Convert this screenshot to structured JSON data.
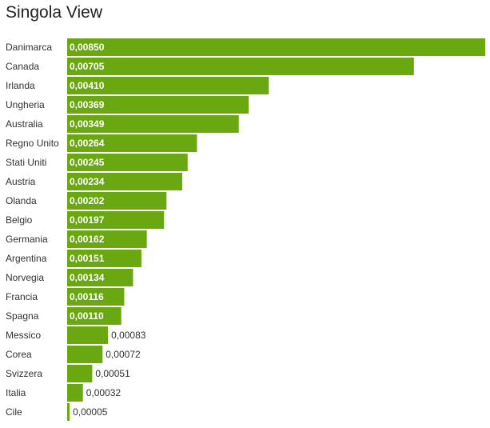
{
  "chart_data": {
    "type": "bar",
    "orientation": "horizontal",
    "title": "Singola View",
    "categories": [
      "Danimarca",
      "Canada",
      "Irlanda",
      "Ungheria",
      "Australia",
      "Regno Unito",
      "Stati Uniti",
      "Austria",
      "Olanda",
      "Belgio",
      "Germania",
      "Argentina",
      "Norvegia",
      "Francia",
      "Spagna",
      "Messico",
      "Corea",
      "Svizzera",
      "Italia",
      "Cile"
    ],
    "values": [
      0.0085,
      0.00705,
      0.0041,
      0.00369,
      0.00349,
      0.00264,
      0.00245,
      0.00234,
      0.00202,
      0.00197,
      0.00162,
      0.00151,
      0.00134,
      0.00116,
      0.0011,
      0.00083,
      0.00072,
      0.00051,
      0.00032,
      5e-05
    ],
    "value_labels": [
      "0,00850",
      "0,00705",
      "0,00410",
      "0,00369",
      "0,00349",
      "0,00264",
      "0,00245",
      "0,00234",
      "0,00202",
      "0,00197",
      "0,00162",
      "0,00151",
      "0,00134",
      "0,00116",
      "0,00110",
      "0,00083",
      "0,00072",
      "0,00051",
      "0,00032",
      "0,00005"
    ],
    "xlim": [
      0,
      0.0085
    ],
    "grid": false,
    "legend": "none",
    "bar_color": "#6aa812"
  }
}
